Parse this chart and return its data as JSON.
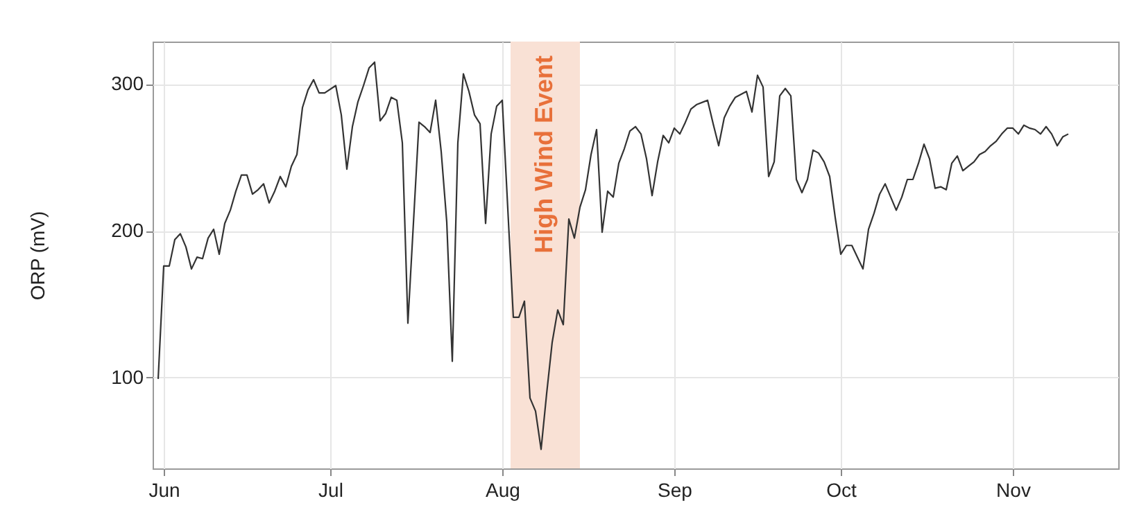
{
  "chart_data": {
    "type": "line",
    "ylabel": "ORP (mV)",
    "x": [
      "--05-31",
      "--06-01",
      "--06-02",
      "--06-03",
      "--06-04",
      "--06-05",
      "--06-06",
      "--06-07",
      "--06-08",
      "--06-09",
      "--06-10",
      "--06-11",
      "--06-12",
      "--06-13",
      "--06-14",
      "--06-15",
      "--06-16",
      "--06-17",
      "--06-18",
      "--06-19",
      "--06-20",
      "--06-21",
      "--06-22",
      "--06-23",
      "--06-24",
      "--06-25",
      "--06-26",
      "--06-27",
      "--06-28",
      "--06-29",
      "--06-30",
      "--07-02",
      "--07-03",
      "--07-04",
      "--07-05",
      "--07-06",
      "--07-07",
      "--07-08",
      "--07-09",
      "--07-10",
      "--07-11",
      "--07-12",
      "--07-13",
      "--07-14",
      "--07-15",
      "--07-17",
      "--07-18",
      "--07-19",
      "--07-20",
      "--07-21",
      "--07-22",
      "--07-23",
      "--07-24",
      "--07-25",
      "--07-26",
      "--07-27",
      "--07-28",
      "--07-29",
      "--07-30",
      "--07-31",
      "--08-01",
      "--08-03",
      "--08-04",
      "--08-05",
      "--08-06",
      "--08-07",
      "--08-08",
      "--08-09",
      "--08-10",
      "--08-11",
      "--08-12",
      "--08-13",
      "--08-14",
      "--08-15",
      "--08-16",
      "--08-17",
      "--08-18",
      "--08-19",
      "--08-20",
      "--08-21",
      "--08-22",
      "--08-23",
      "--08-24",
      "--08-25",
      "--08-26",
      "--08-27",
      "--08-28",
      "--08-29",
      "--08-30",
      "--08-31",
      "--09-01",
      "--09-02",
      "--09-03",
      "--09-04",
      "--09-05",
      "--09-07",
      "--09-08",
      "--09-09",
      "--09-10",
      "--09-11",
      "--09-12",
      "--09-14",
      "--09-15",
      "--09-16",
      "--09-17",
      "--09-18",
      "--09-19",
      "--09-20",
      "--09-21",
      "--09-22",
      "--09-23",
      "--09-24",
      "--09-25",
      "--09-26",
      "--09-27",
      "--09-28",
      "--09-29",
      "--09-30",
      "--10-01",
      "--10-02",
      "--10-03",
      "--10-04",
      "--10-05",
      "--10-06",
      "--10-07",
      "--10-08",
      "--10-09",
      "--10-10",
      "--10-11",
      "--10-12",
      "--10-13",
      "--10-14",
      "--10-15",
      "--10-16",
      "--10-17",
      "--10-18",
      "--10-19",
      "--10-20",
      "--10-21",
      "--10-22",
      "--10-23",
      "--10-24",
      "--10-25",
      "--10-26",
      "--10-27",
      "--10-28",
      "--10-29",
      "--10-30",
      "--10-31",
      "--11-01",
      "--11-02",
      "--11-03",
      "--11-04",
      "--11-05",
      "--11-06",
      "--11-07",
      "--11-08",
      "--11-09",
      "--11-10",
      "--11-11"
    ],
    "series": [
      {
        "color": "#333333",
        "values": [
          99,
          176,
          176,
          194,
          198,
          189,
          174,
          182,
          181,
          195,
          201,
          184,
          205,
          214,
          227,
          238,
          238,
          225,
          228,
          232,
          219,
          227,
          237,
          230,
          244,
          252,
          284,
          296,
          303,
          294,
          294,
          299,
          279,
          242,
          271,
          288,
          299,
          311,
          315,
          275,
          280,
          291,
          289,
          260,
          137,
          274,
          271,
          267,
          289,
          254,
          206,
          111,
          260,
          307,
          295,
          279,
          273,
          205,
          266,
          285,
          289,
          141,
          141,
          152,
          86,
          77,
          51,
          89,
          124,
          146,
          136,
          208,
          195,
          216,
          228,
          252,
          269,
          199,
          227,
          223,
          246,
          256,
          268,
          271,
          266,
          249,
          224,
          247,
          265,
          260,
          270,
          266,
          274,
          283,
          286,
          289,
          273,
          258,
          277,
          285,
          291,
          295,
          281,
          306,
          298,
          237,
          247,
          292,
          297,
          292,
          235,
          226,
          235,
          255,
          253,
          247,
          237,
          209,
          184,
          190,
          190,
          182,
          174,
          201,
          212,
          225,
          232,
          223,
          214,
          223,
          235,
          235,
          246,
          259,
          249,
          229,
          230,
          228,
          246,
          251,
          241,
          244,
          247,
          252,
          254,
          258,
          261,
          266,
          270,
          270,
          266,
          272,
          270,
          269,
          266,
          271,
          266,
          258,
          264,
          266
        ]
      }
    ],
    "xlim": [
      "--05-30",
      "--11-20"
    ],
    "xticks": [
      {
        "value": "--06-01",
        "label": "Jun"
      },
      {
        "value": "--07-01",
        "label": "Jul"
      },
      {
        "value": "--08-01",
        "label": "Aug"
      },
      {
        "value": "--09-01",
        "label": "Sep"
      },
      {
        "value": "--10-01",
        "label": "Oct"
      },
      {
        "value": "--11-01",
        "label": "Nov"
      }
    ],
    "ylim": [
      38,
      329
    ],
    "yticks": [
      100,
      200,
      300
    ],
    "bands": [
      {
        "axis": "x",
        "from": "--08-02T12:00",
        "to": "--08-15",
        "label": "High Wind Event",
        "color": "#f9e1d5"
      }
    ],
    "grid": true
  }
}
